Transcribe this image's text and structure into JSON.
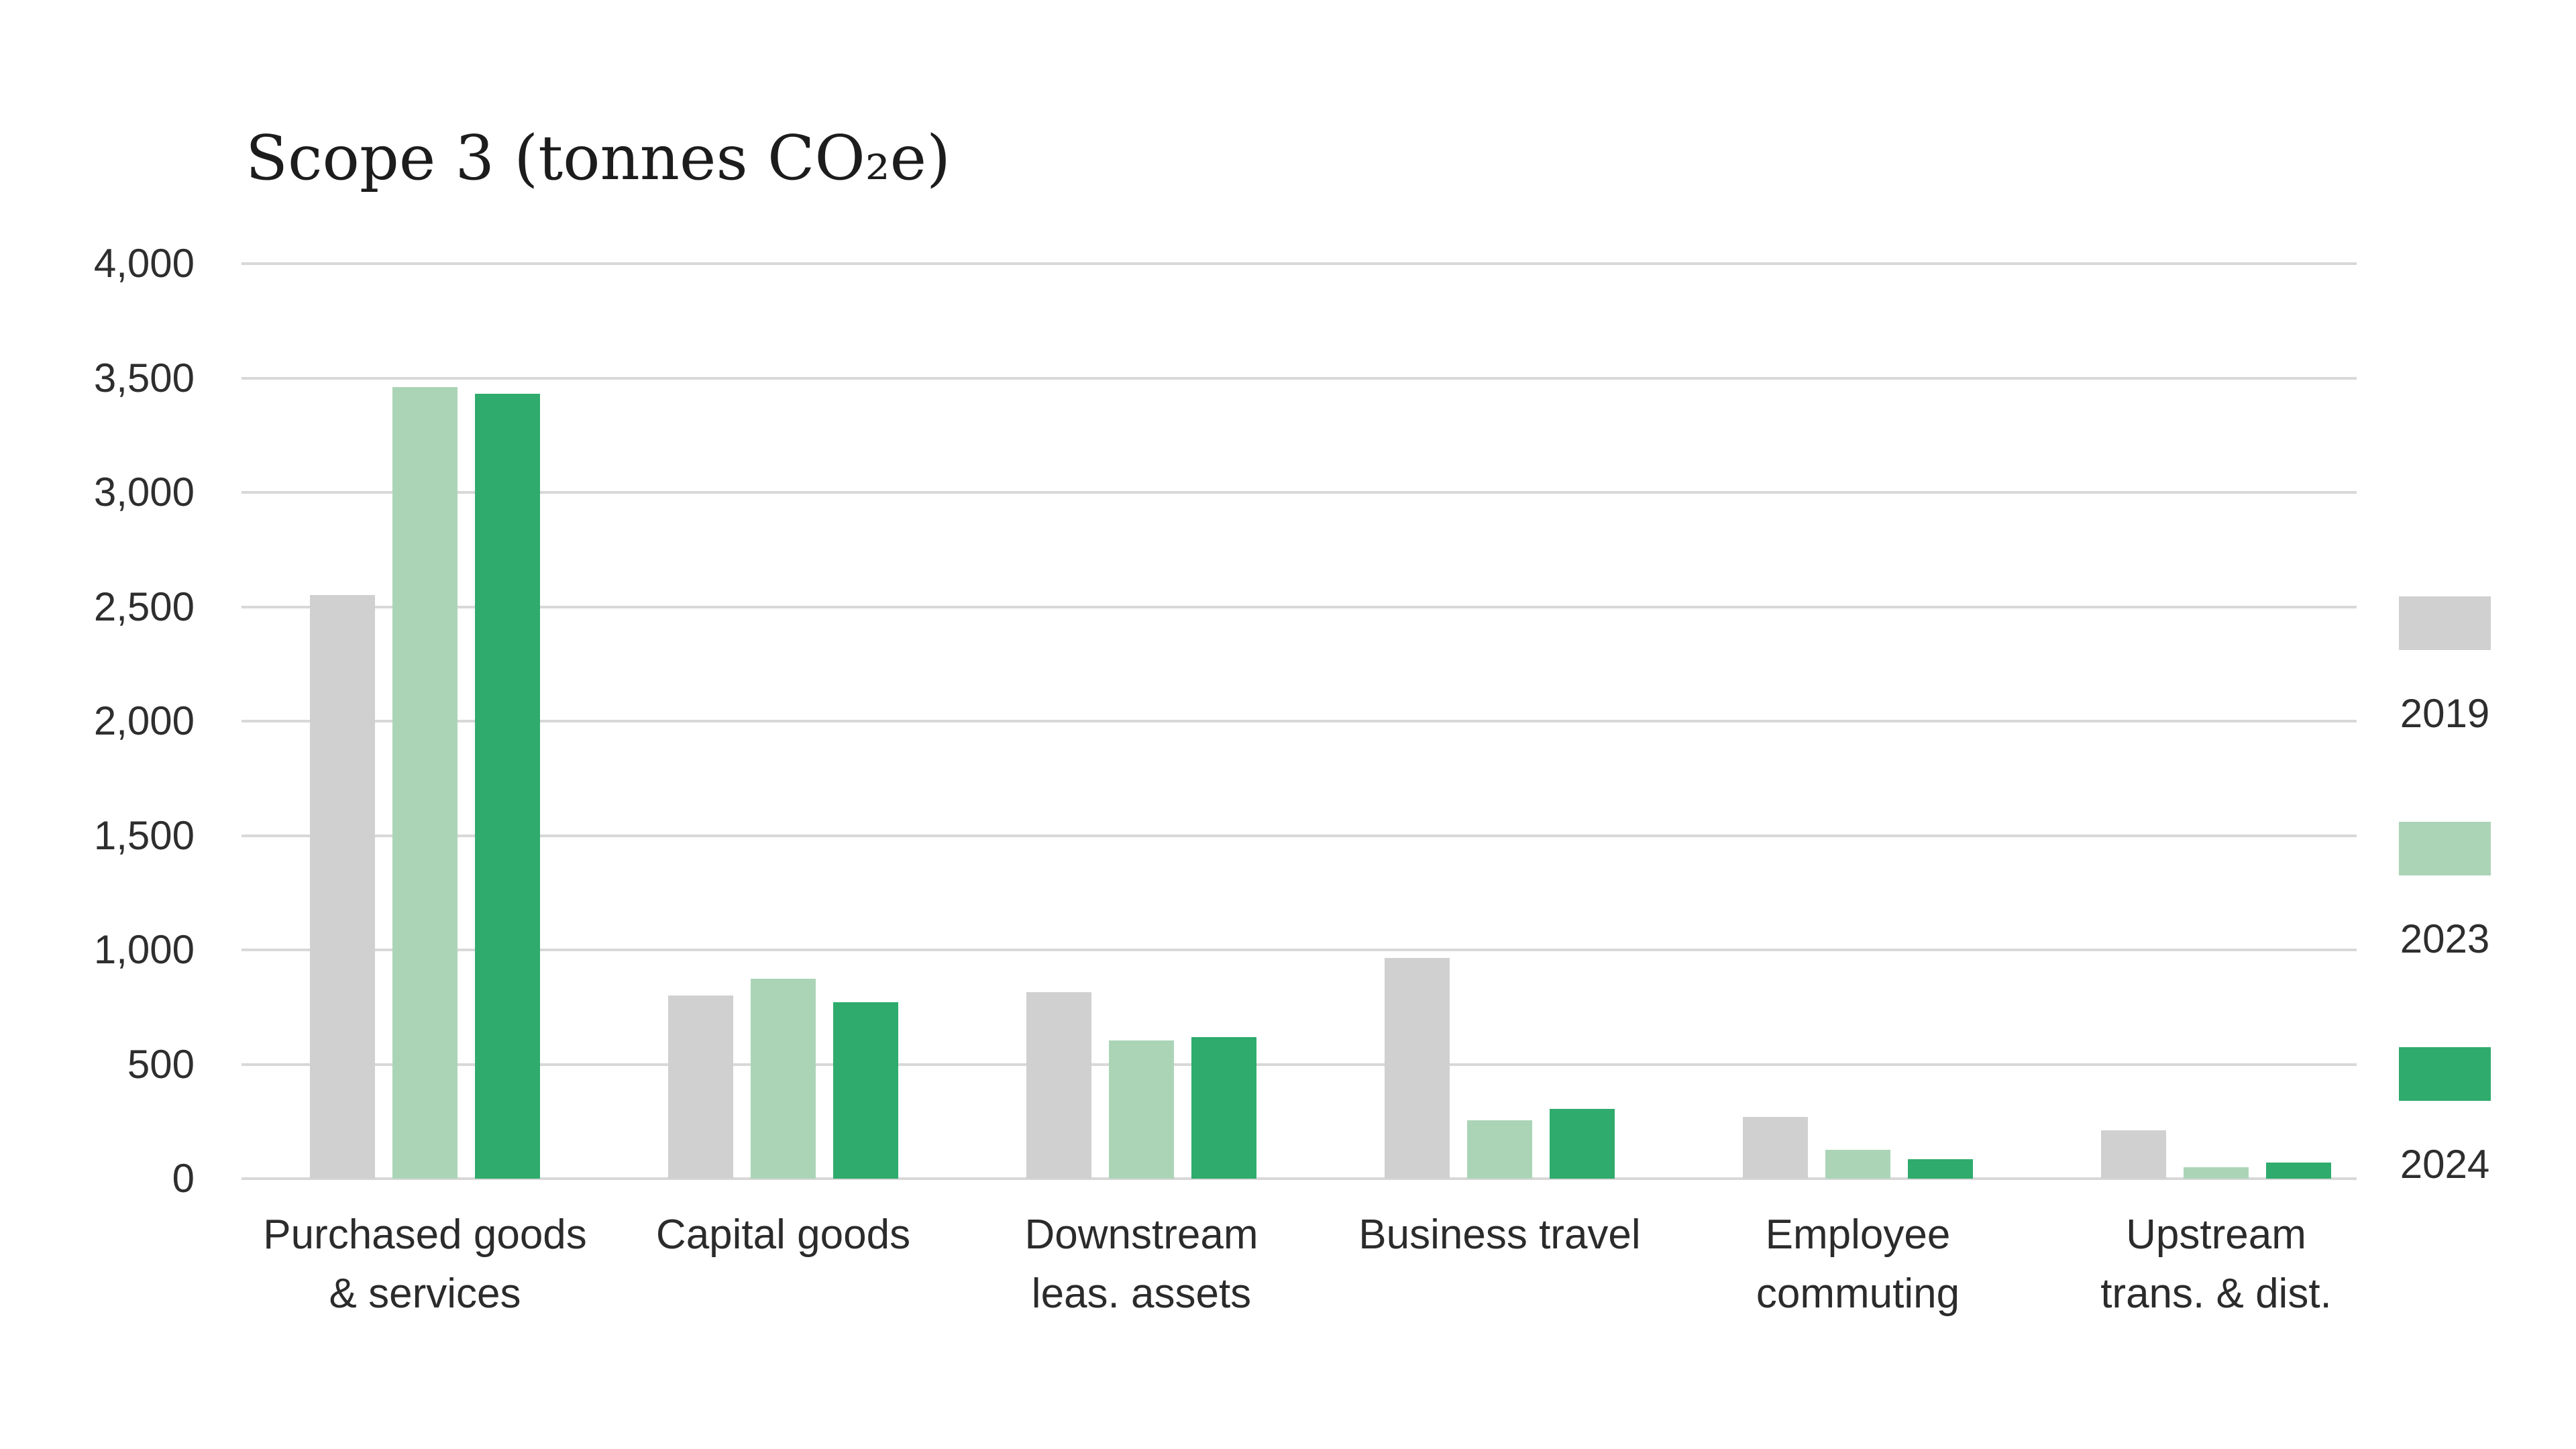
{
  "chart_data": {
    "type": "bar",
    "title": "Scope 3 (tonnes CO₂e)",
    "categories": [
      "Purchased goods\n& services",
      "Capital goods",
      "Downstream\nleas. assets",
      "Business travel",
      "Employee\ncommuting",
      "Upstream\ntrans. & dist."
    ],
    "series": [
      {
        "name": "2019",
        "color": "#d0d0d0",
        "values": [
          2550,
          800,
          815,
          965,
          270,
          210
        ]
      },
      {
        "name": "2023",
        "color": "#abd4b7",
        "values": [
          3460,
          875,
          605,
          255,
          125,
          50
        ]
      },
      {
        "name": "2024",
        "color": "#2fab6d",
        "values": [
          3430,
          770,
          620,
          305,
          85,
          70
        ]
      }
    ],
    "ylim": [
      0,
      4000
    ],
    "ytick_step": 500,
    "ytick_labels": [
      "4,000",
      "3,500",
      "3,000",
      "2,500",
      "2,000",
      "1,500",
      "1,000",
      "500",
      "0"
    ],
    "grid": "horizontal",
    "legend_position": "right"
  },
  "colors": {
    "grid": "#d8d8d8",
    "title_text": "#1c1c1c",
    "label_text": "#2e2e2e",
    "background": "#ffffff"
  }
}
